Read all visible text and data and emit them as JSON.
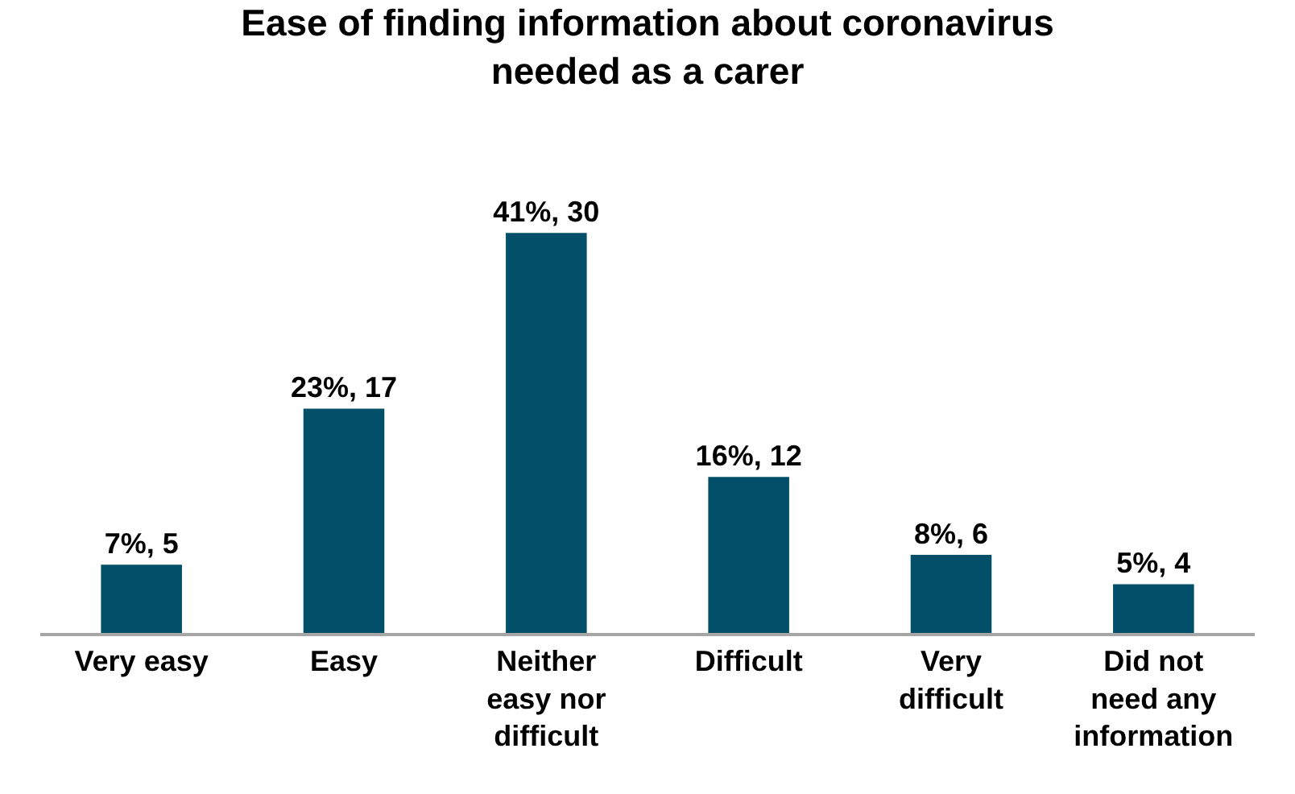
{
  "chart_data": {
    "type": "bar",
    "title": "Ease of finding information about coronavirus needed as a carer",
    "categories": [
      "Very easy",
      "Easy",
      "Neither easy nor difficult",
      "Difficult",
      "Very difficult",
      "Did not need any information"
    ],
    "values": [
      7,
      23,
      41,
      16,
      8,
      5
    ],
    "value_labels": [
      "7%, 5",
      "23%, 17",
      "41%, 30",
      "16%, 12",
      "8%, 6",
      "5%, 4"
    ],
    "color": "#024f69",
    "legend": false
  }
}
